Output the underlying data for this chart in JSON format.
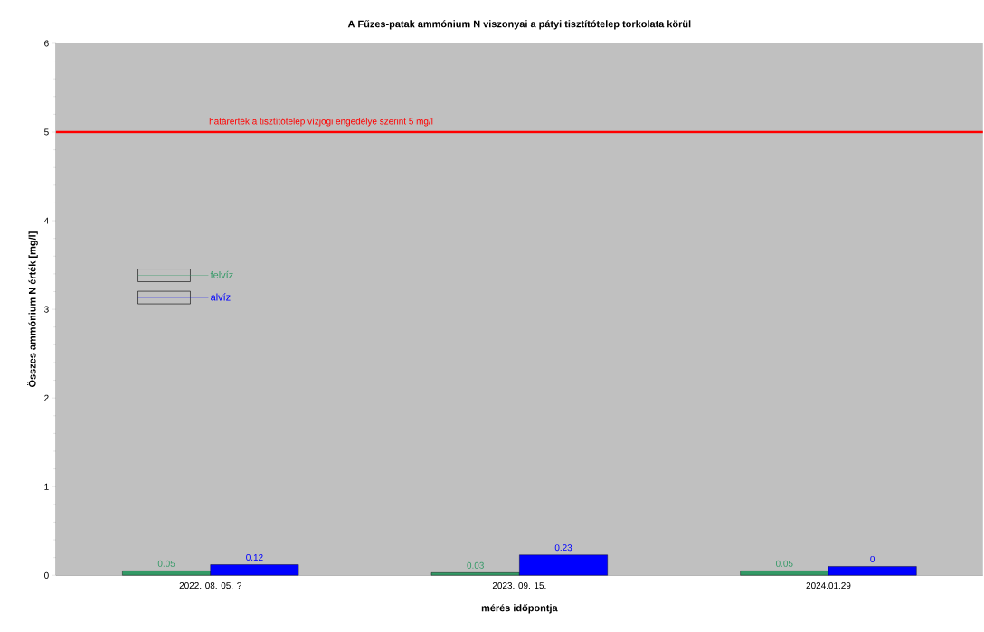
{
  "chart_data": {
    "type": "bar",
    "title": "A Fűzes-patak ammónium N viszonyai a pátyi tisztítótelep torkolata  körül",
    "xlabel": "mérés időpontja",
    "ylabel": "Összes ammónium N érték [mg/l]",
    "categories": [
      "2022. 08. 05. ?",
      "2023. 09. 15.",
      "2024.01.29"
    ],
    "series": [
      {
        "name": "felvíz",
        "color": "#339966",
        "values": [
          0.05,
          0.03,
          0.05
        ],
        "value_labels": [
          "0.05",
          "0.03",
          "0.05"
        ]
      },
      {
        "name": "alvíz",
        "color": "#0000ff",
        "values": [
          0.12,
          0.23,
          0.1
        ],
        "value_labels": [
          "0.12",
          "0.23",
          "0"
        ]
      }
    ],
    "ylim": [
      0,
      6
    ],
    "yticks": [
      0,
      1,
      2,
      3,
      4,
      5,
      6
    ],
    "ref_lines": [
      {
        "axis": "y",
        "value": 5,
        "label": "határérték a tisztítótelep vízjogi engedélye szerint 5 mg/l",
        "color": "#ff0000"
      }
    ],
    "legend": "left",
    "grid": false
  }
}
